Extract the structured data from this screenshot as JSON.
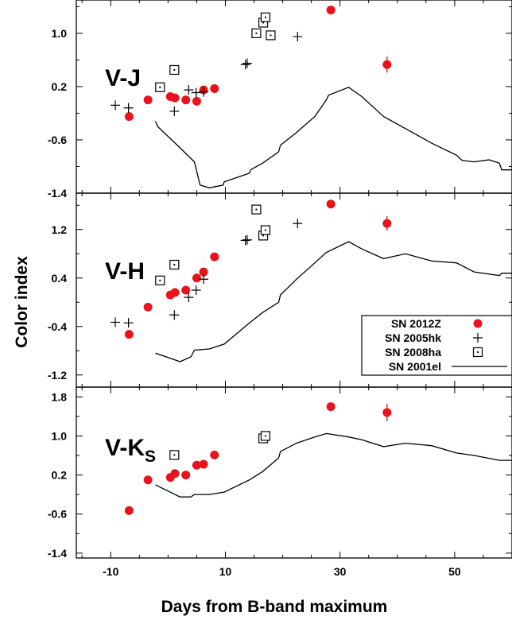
{
  "figure": {
    "ylabel": "Color index",
    "xlabel": "Days from B-band maximum"
  },
  "legend": {
    "placement": "center-right-of-middle-panel",
    "entries": [
      {
        "label": "SN 2012Z",
        "marker": "filled-circle",
        "color": "#e8131b"
      },
      {
        "label": "SN 2005hk",
        "marker": "plus",
        "color": "#000000"
      },
      {
        "label": "SN 2008ha",
        "marker": "dotted-square",
        "color": "#000000"
      },
      {
        "label": "SN 2001el",
        "marker": "line",
        "color": "#000000"
      }
    ]
  },
  "chart_data": [
    {
      "type": "scatter",
      "panel_label": "V-J",
      "xlim": [
        -16,
        60
      ],
      "ylim": [
        -1.4,
        1.5
      ],
      "x_ticks": [
        "-10",
        "10",
        "30",
        "50"
      ],
      "y_ticks": [
        "-1.4",
        "-0.6",
        "0.2",
        "1.0"
      ],
      "y_tick_values": [
        -1.4,
        -0.6,
        0.2,
        1.0
      ],
      "series": [
        {
          "name": "SN 2012Z",
          "marker": "filled-circle",
          "points": [
            [
              -6.8,
              -0.25
            ],
            [
              -3.5,
              0.0
            ],
            [
              0.4,
              0.05
            ],
            [
              1.2,
              0.03
            ],
            [
              3.1,
              0.0
            ],
            [
              5.0,
              -0.02
            ],
            [
              6.2,
              0.15
            ],
            [
              8.1,
              0.17
            ],
            [
              28.4,
              1.35
            ],
            [
              38.2,
              0.53
            ]
          ],
          "error_bars": [
            [
              38.2,
              0.12
            ]
          ]
        },
        {
          "name": "SN 2005hk",
          "marker": "plus",
          "points": [
            [
              -9.2,
              -0.08
            ],
            [
              -6.9,
              -0.12
            ],
            [
              1.1,
              -0.17
            ],
            [
              3.6,
              0.15
            ],
            [
              4.9,
              0.11
            ],
            [
              6.2,
              0.12
            ],
            [
              13.5,
              0.53
            ],
            [
              13.8,
              0.55
            ],
            [
              22.6,
              0.95
            ]
          ]
        },
        {
          "name": "SN 2008ha",
          "marker": "dotted-square",
          "points": [
            [
              -1.4,
              0.19
            ],
            [
              1.1,
              0.45
            ],
            [
              15.4,
              1.0
            ],
            [
              16.6,
              1.16
            ],
            [
              17.0,
              1.24
            ],
            [
              17.9,
              0.97
            ]
          ]
        },
        {
          "name": "SN 2001el",
          "marker": "line",
          "points": [
            [
              -2.2,
              -0.32
            ],
            [
              -1.8,
              -0.4
            ],
            [
              2.1,
              -0.72
            ],
            [
              4.0,
              -0.88
            ],
            [
              4.6,
              -0.93
            ],
            [
              5.6,
              -1.28
            ],
            [
              7.2,
              -1.32
            ],
            [
              9.6,
              -1.28
            ],
            [
              9.8,
              -1.23
            ],
            [
              14.2,
              -1.1
            ],
            [
              14.4,
              -1.05
            ],
            [
              15.0,
              -1.02
            ],
            [
              16.5,
              -0.95
            ],
            [
              19.3,
              -0.78
            ],
            [
              19.6,
              -0.68
            ],
            [
              22.4,
              -0.49
            ],
            [
              25.6,
              -0.25
            ],
            [
              27.6,
              0.0
            ],
            [
              28.0,
              0.07
            ],
            [
              31.5,
              0.19
            ],
            [
              33.8,
              0.05
            ],
            [
              37.6,
              -0.25
            ],
            [
              41.4,
              -0.43
            ],
            [
              46.0,
              -0.65
            ],
            [
              50.3,
              -0.83
            ],
            [
              51.3,
              -0.91
            ],
            [
              53.4,
              -0.93
            ],
            [
              56.0,
              -0.9
            ],
            [
              57.8,
              -0.95
            ],
            [
              58.2,
              -1.05
            ],
            [
              60.0,
              -1.05
            ]
          ]
        }
      ]
    },
    {
      "type": "scatter",
      "panel_label": "V-H",
      "xlim": [
        -16,
        60
      ],
      "ylim": [
        -1.4,
        1.8
      ],
      "x_ticks": [
        "-10",
        "10",
        "30",
        "50"
      ],
      "y_ticks": [
        "-1.2",
        "-0.4",
        "0.4",
        "1.2"
      ],
      "y_tick_values": [
        -1.2,
        -0.4,
        0.4,
        1.2
      ],
      "series": [
        {
          "name": "SN 2012Z",
          "marker": "filled-circle",
          "points": [
            [
              -6.8,
              -0.53
            ],
            [
              -3.5,
              -0.08
            ],
            [
              0.4,
              0.12
            ],
            [
              1.2,
              0.16
            ],
            [
              3.1,
              0.2
            ],
            [
              5.0,
              0.4
            ],
            [
              6.2,
              0.5
            ],
            [
              8.1,
              0.75
            ],
            [
              28.4,
              1.62
            ],
            [
              38.2,
              1.3
            ]
          ],
          "error_bars": [
            [
              38.2,
              0.12
            ]
          ]
        },
        {
          "name": "SN 2005hk",
          "marker": "plus",
          "points": [
            [
              -9.2,
              -0.33
            ],
            [
              -6.9,
              -0.34
            ],
            [
              1.1,
              -0.21
            ],
            [
              3.6,
              0.08
            ],
            [
              4.9,
              0.2
            ],
            [
              6.2,
              0.38
            ],
            [
              13.5,
              1.02
            ],
            [
              13.8,
              1.03
            ],
            [
              22.6,
              1.3
            ]
          ]
        },
        {
          "name": "SN 2008ha",
          "marker": "dotted-square",
          "points": [
            [
              -1.4,
              0.36
            ],
            [
              1.1,
              0.62
            ],
            [
              15.4,
              1.53
            ],
            [
              16.6,
              1.1
            ],
            [
              17.0,
              1.19
            ]
          ]
        },
        {
          "name": "SN 2001el",
          "marker": "line",
          "points": [
            [
              -2.2,
              -0.84
            ],
            [
              2.1,
              -0.98
            ],
            [
              4.0,
              -0.9
            ],
            [
              4.6,
              -0.79
            ],
            [
              7.2,
              -0.77
            ],
            [
              9.8,
              -0.69
            ],
            [
              14.2,
              -0.34
            ],
            [
              16.5,
              -0.17
            ],
            [
              19.3,
              0.0
            ],
            [
              19.6,
              0.12
            ],
            [
              22.4,
              0.38
            ],
            [
              25.6,
              0.65
            ],
            [
              27.6,
              0.82
            ],
            [
              31.5,
              1.0
            ],
            [
              33.8,
              0.88
            ],
            [
              37.6,
              0.72
            ],
            [
              41.4,
              0.8
            ],
            [
              46.0,
              0.68
            ],
            [
              50.3,
              0.65
            ],
            [
              53.4,
              0.5
            ],
            [
              57.8,
              0.44
            ],
            [
              58.2,
              0.48
            ],
            [
              60.0,
              0.48
            ]
          ]
        }
      ]
    },
    {
      "type": "scatter",
      "panel_label": "V-K",
      "panel_label_subscript": "S",
      "xlim": [
        -16,
        60
      ],
      "ylim": [
        -1.5,
        2.0
      ],
      "x_ticks": [
        "-10",
        "10",
        "30",
        "50"
      ],
      "y_ticks": [
        "-1.4",
        "-0.6",
        "0.2",
        "1.0",
        "1.8"
      ],
      "y_tick_values": [
        -1.4,
        -0.6,
        0.2,
        1.0,
        1.8
      ],
      "series": [
        {
          "name": "SN 2012Z",
          "marker": "filled-circle",
          "points": [
            [
              -6.8,
              -0.53
            ],
            [
              -3.5,
              0.1
            ],
            [
              0.4,
              0.15
            ],
            [
              1.2,
              0.23
            ],
            [
              3.1,
              0.2
            ],
            [
              5.0,
              0.4
            ],
            [
              6.2,
              0.42
            ],
            [
              8.1,
              0.61
            ],
            [
              28.4,
              1.6
            ],
            [
              38.2,
              1.48
            ]
          ],
          "error_bars": [
            [
              38.2,
              0.18
            ]
          ]
        },
        {
          "name": "SN 2008ha",
          "marker": "dotted-square",
          "points": [
            [
              1.1,
              0.61
            ],
            [
              16.6,
              0.95
            ],
            [
              17.0,
              1.0
            ]
          ]
        },
        {
          "name": "SN 2001el",
          "marker": "line",
          "points": [
            [
              -2.2,
              0.0
            ],
            [
              2.1,
              -0.25
            ],
            [
              4.0,
              -0.25
            ],
            [
              4.6,
              -0.2
            ],
            [
              7.2,
              -0.2
            ],
            [
              9.8,
              -0.15
            ],
            [
              14.2,
              0.1
            ],
            [
              16.5,
              0.27
            ],
            [
              19.3,
              0.55
            ],
            [
              19.6,
              0.68
            ],
            [
              22.4,
              0.85
            ],
            [
              25.6,
              0.98
            ],
            [
              27.6,
              1.05
            ],
            [
              31.5,
              0.98
            ],
            [
              33.8,
              0.92
            ],
            [
              37.6,
              0.78
            ],
            [
              41.4,
              0.85
            ],
            [
              46.0,
              0.8
            ],
            [
              50.3,
              0.65
            ],
            [
              53.4,
              0.6
            ],
            [
              57.8,
              0.5
            ],
            [
              60.0,
              0.5
            ]
          ]
        }
      ]
    }
  ]
}
